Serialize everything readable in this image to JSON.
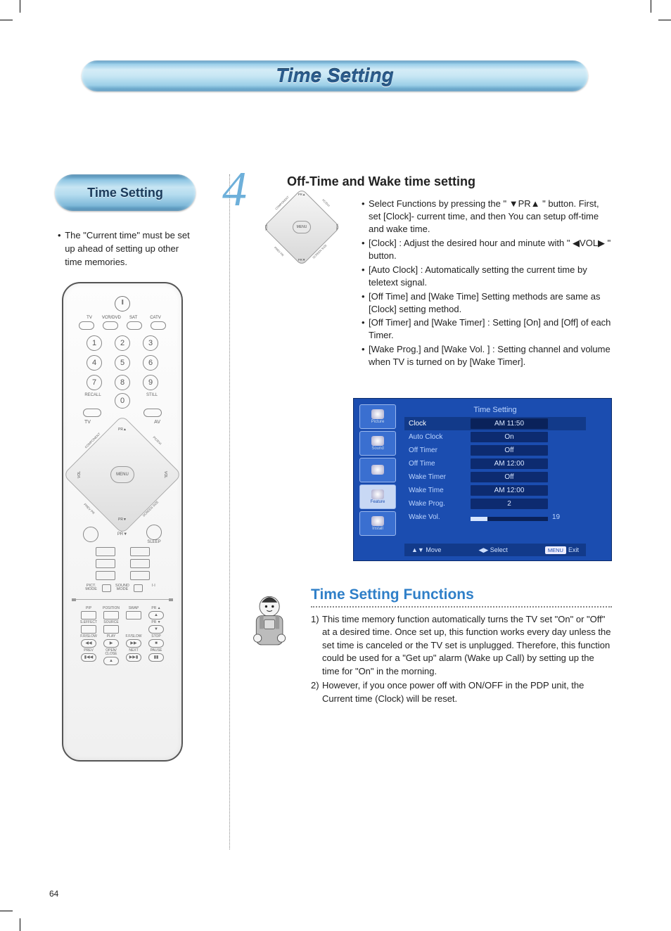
{
  "title": "Time Setting",
  "side_pill": "Time Setting",
  "side_note": "The \"Current time\" must be set up ahead of setting up other time memories.",
  "remote": {
    "sources": [
      "TV",
      "VCR/DVD",
      "SAT",
      "CATV"
    ],
    "recall": "RECALL",
    "still": "STILL",
    "tv": "TV",
    "av": "AV",
    "menu": "MENU",
    "pr_up": "PR▲",
    "pr_dn": "PR▼",
    "vol": "VOL",
    "diag_tl": "COMPONENT",
    "diag_tr": "PC/DVI",
    "diag_bl": "PREV PR",
    "diag_br": "SCREEN SIZE",
    "sleep": "SLEEP",
    "pict": "PICT. MODE",
    "sound": "SOUND MODE",
    "ii": "I·I",
    "pip_row1": [
      "PIP",
      "POSITION",
      "SWAP",
      "PR ▲"
    ],
    "pip_row2": [
      "S.EFFECT",
      "SOURCE",
      "",
      "PR ▼"
    ],
    "pip_row3": [
      "F.R/SLOW",
      "PLAY",
      "F.F/SLOW",
      "STOP"
    ],
    "pip_row3_sym": [
      "◀◀",
      "▶",
      "▶▶",
      "■"
    ],
    "pip_row4": [
      "PREV",
      "OPEN/ CLOSE",
      "NEXT",
      "PAUSE"
    ],
    "pip_row4_sym": [
      "▮◀◀",
      "▲",
      "▶▶▮",
      "▮▮"
    ]
  },
  "section4": {
    "num": "4",
    "heading": "Off-Time and Wake time setting",
    "bullets": [
      "Select Functions by pressing the \" ▼PR▲ \" button. First, set [Clock]- current time, and then You can setup off-time and wake time.",
      "[Clock] : Adjust the desired hour and minute with \" ◀VOL▶ \" button.",
      "[Auto Clock] : Automatically setting the current time by teletext signal.",
      "[Off Time] and [Wake Time] Setting methods are same as [Clock] setting method.",
      "[Off Timer] and [Wake Timer] : Setting [On] and [Off] of each Timer.",
      "[Wake Prog.] and [Wake Vol. ] : Setting channel and volume when TV is turned on by [Wake Timer]."
    ],
    "fig": {
      "menu": "MENU",
      "pr_up": "PR▲",
      "pr_dn": "PR▼",
      "vol": "VOL",
      "tl": "COMPONENT",
      "tr": "PC/DVI",
      "bl": "PREV PR",
      "br": "SCREEN SIZE"
    }
  },
  "osd": {
    "title": "Time Setting",
    "tabs": [
      "Picture",
      "Sound",
      "",
      "Feature",
      "Install"
    ],
    "rows": [
      {
        "k": "Clock",
        "v": "AM 11:50",
        "sel": true
      },
      {
        "k": "Auto Clock",
        "v": "On"
      },
      {
        "k": "Off Timer",
        "v": "Off"
      },
      {
        "k": "Off Time",
        "v": "AM 12:00"
      },
      {
        "k": "Wake Timer",
        "v": "Off"
      },
      {
        "k": "Wake Time",
        "v": "AM 12:00"
      },
      {
        "k": "Wake Prog.",
        "v": "2"
      },
      {
        "k": "Wake Vol.",
        "slider": true,
        "extra": "19"
      }
    ],
    "footer": {
      "move": "Move",
      "select": "Select",
      "menu": "MENU",
      "exit": "Exit"
    },
    "colors": {
      "bg": "#1b4db0",
      "panel": "#123a8a",
      "text": "#bcd5ff"
    }
  },
  "functions": {
    "heading": "Time Setting Functions",
    "items": [
      {
        "n": "1)",
        "t": "This time memory function automatically turns the TV set \"On\" or \"Off\" at a desired time. Once set up, this function works every day unless the set time is canceled or the TV set is unplugged. Therefore, this function could be used for a \"Get up\" alarm (Wake up Call) by setting up the time for \"On\" in the morning."
      },
      {
        "n": "2)",
        "t": "However, if you once power off with ON/OFF in the PDP unit, the Current time (Clock) will be reset."
      }
    ]
  },
  "page_number": "64"
}
